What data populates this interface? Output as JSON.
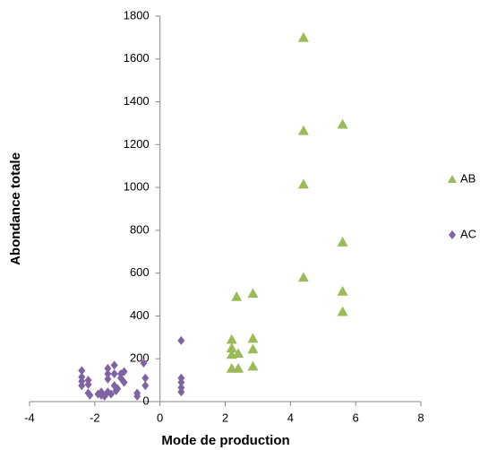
{
  "chart_data": {
    "type": "scatter",
    "xlabel": "Mode de production",
    "ylabel": "Abondance totale",
    "xlim": [
      -4,
      8
    ],
    "xticks": [
      -4,
      -2,
      0,
      2,
      4,
      6,
      8
    ],
    "ylim": [
      0,
      1800
    ],
    "yticks": [
      0,
      200,
      400,
      600,
      800,
      1000,
      1200,
      1400,
      1600,
      1800
    ],
    "legend": "right",
    "series": [
      {
        "name": "AB",
        "color": "#9bbb59",
        "marker": "triangle",
        "x": [
          4.4,
          4.4,
          4.4,
          4.4,
          5.6,
          5.6,
          5.6,
          5.6,
          2.35,
          2.85,
          2.85,
          2.85,
          2.85,
          2.2,
          2.2,
          2.2,
          2.2,
          2.4,
          2.4
        ],
        "values": [
          1700,
          1265,
          1015,
          580,
          1295,
          745,
          515,
          420,
          490,
          505,
          295,
          245,
          165,
          290,
          250,
          220,
          155,
          225,
          155
        ]
      },
      {
        "name": "AC",
        "color": "#8064a2",
        "marker": "diamond",
        "x": [
          -2.4,
          -2.4,
          -2.4,
          -2.4,
          -2.2,
          -2.2,
          -2.2,
          -2.15,
          -1.9,
          -1.8,
          -1.8,
          -1.7,
          -1.6,
          -1.6,
          -1.6,
          -1.6,
          -1.5,
          -1.4,
          -1.4,
          -1.4,
          -1.35,
          -1.3,
          -1.2,
          -1.2,
          -1.1,
          -1.1,
          -0.7,
          -0.7,
          -0.5,
          -0.45,
          -0.45,
          0.65,
          0.65,
          0.65,
          0.65,
          0.65
        ],
        "values": [
          145,
          115,
          95,
          75,
          100,
          80,
          40,
          30,
          35,
          45,
          30,
          25,
          155,
          130,
          105,
          45,
          35,
          170,
          130,
          75,
          50,
          60,
          130,
          110,
          140,
          90,
          40,
          25,
          180,
          110,
          75,
          285,
          110,
          90,
          65,
          45
        ]
      }
    ]
  }
}
